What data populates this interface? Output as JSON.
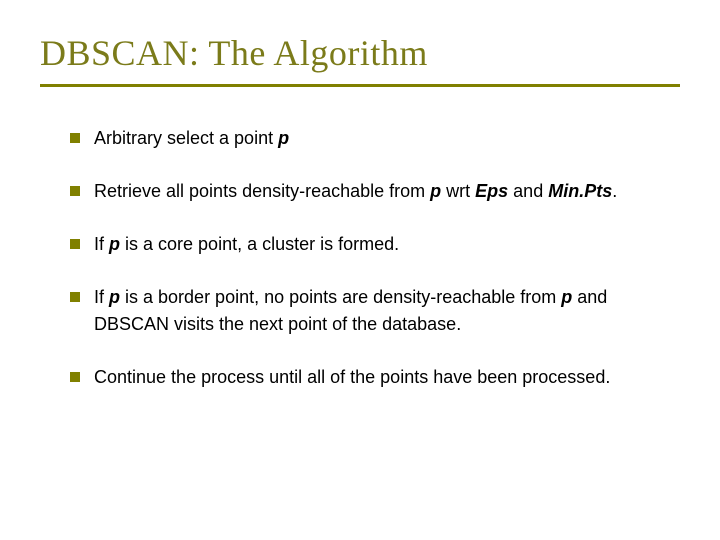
{
  "slide": {
    "title": "DBSCAN: The Algorithm",
    "title_color": "#7b7b1a",
    "title_fontsize": 36,
    "underline_color": "#808000",
    "underline_width": 3,
    "bullet_marker_color": "#808000",
    "body_fontsize": 18,
    "body_color": "#000000",
    "bullets": [
      {
        "pre": "Arbitrary select a point ",
        "em1": "p",
        "post": ""
      },
      {
        "pre": "Retrieve all points density-reachable from ",
        "em1": "p",
        "mid1": " wrt ",
        "em2": "Eps",
        "mid2": " and ",
        "em3": "Min.Pts",
        "post": "."
      },
      {
        "pre": "If ",
        "em1": "p",
        "post": " is a core point, a cluster is formed."
      },
      {
        "pre": "If ",
        "em1": "p",
        "mid1": " is a border point, no points are density-reachable from ",
        "em2": "p",
        "post": " and DBSCAN visits the next point of the database."
      },
      {
        "pre": "Continue the process until all of the points have been processed.",
        "em1": "",
        "post": ""
      }
    ]
  }
}
